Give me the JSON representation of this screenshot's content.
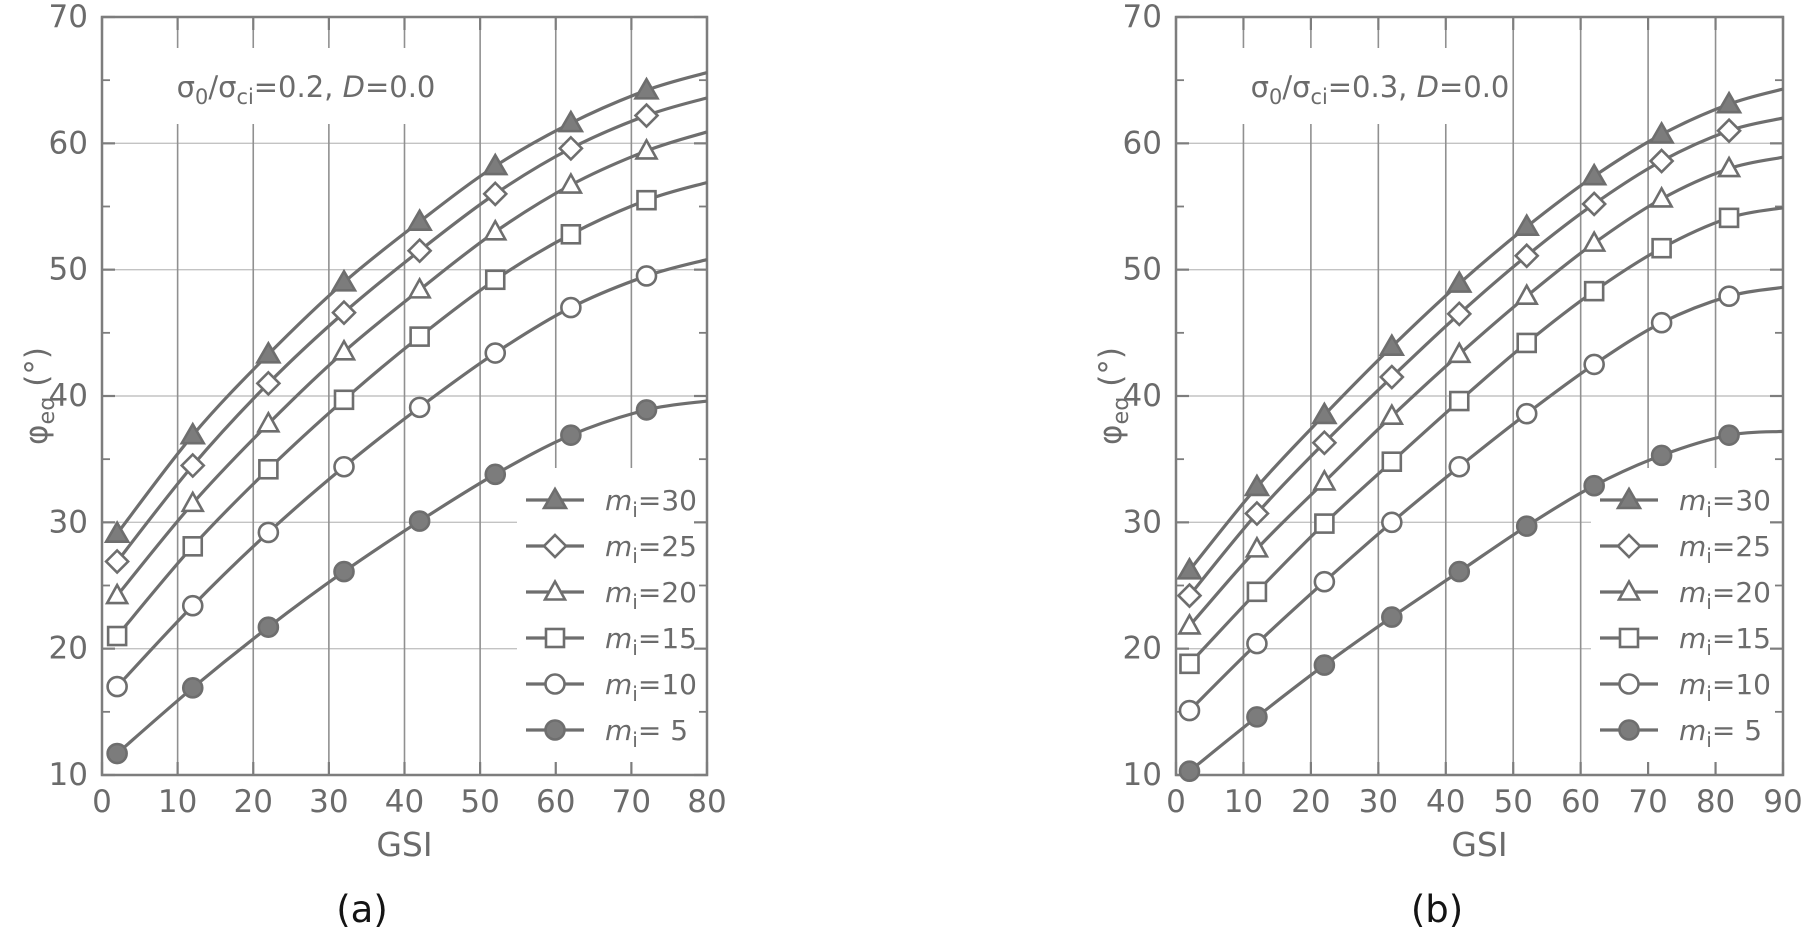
{
  "figure": {
    "captions": {
      "a": "(a)",
      "b": "(b)"
    }
  },
  "styles": {
    "background": "#ffffff",
    "curve_color": "#6e6e6e",
    "filled_marker_color": "#7c7c7c",
    "open_marker_fill": "#ffffff",
    "frame_color": "#7d7d7d",
    "v_grid_color": "#909090",
    "h_grid_color": "#c3c3c3",
    "text_gray": "#6b6b6b",
    "caption_color": "#141414"
  },
  "chart_data": [
    {
      "id": "a",
      "type": "line",
      "title": "σ0/σci=0.2, D=0.0",
      "title_segments": [
        {
          "t": "σ"
        },
        {
          "t": "0",
          "sub": true
        },
        {
          "t": "/σ"
        },
        {
          "t": "ci",
          "sub": true
        },
        {
          "t": "=0.2, "
        },
        {
          "t": "D",
          "i": true
        },
        {
          "t": "=0.0"
        }
      ],
      "xlabel": "GSI",
      "ylabel": "φeq (°)",
      "ylabel_segments": [
        {
          "t": "φ"
        },
        {
          "t": "eq",
          "sub": true
        },
        {
          "t": " (°)"
        }
      ],
      "xlim": [
        0,
        80
      ],
      "ylim": [
        10,
        70
      ],
      "xticks": [
        0,
        10,
        20,
        30,
        40,
        50,
        60,
        70,
        80
      ],
      "yticks": [
        10,
        20,
        30,
        40,
        50,
        60,
        70
      ],
      "y_minor_step": 5,
      "grid": true,
      "legend_position": "lower right",
      "x": [
        2,
        12,
        22,
        32,
        42,
        52,
        62,
        72
      ],
      "x_end": 80,
      "series": [
        {
          "name": "mi=30",
          "marker": "triangle-filled",
          "label_segments": [
            {
              "t": "m",
              "i": true
            },
            {
              "t": "i",
              "sub": true
            },
            {
              "t": "=30"
            }
          ],
          "values": [
            29.1,
            36.9,
            43.3,
            49.0,
            53.8,
            58.2,
            61.6,
            64.2
          ],
          "end_value": 65.6
        },
        {
          "name": "mi=25",
          "marker": "diamond-open",
          "label_segments": [
            {
              "t": "m",
              "i": true
            },
            {
              "t": "i",
              "sub": true
            },
            {
              "t": "=25"
            }
          ],
          "values": [
            26.9,
            34.5,
            41.0,
            46.6,
            51.5,
            56.0,
            59.6,
            62.2
          ],
          "end_value": 63.6
        },
        {
          "name": "mi=20",
          "marker": "triangle-open",
          "label_segments": [
            {
              "t": "m",
              "i": true
            },
            {
              "t": "i",
              "sub": true
            },
            {
              "t": "=20"
            }
          ],
          "values": [
            24.2,
            31.5,
            37.8,
            43.5,
            48.4,
            53.0,
            56.7,
            59.4
          ],
          "end_value": 60.9
        },
        {
          "name": "mi=15",
          "marker": "square-open",
          "label_segments": [
            {
              "t": "m",
              "i": true
            },
            {
              "t": "i",
              "sub": true
            },
            {
              "t": "=15"
            }
          ],
          "values": [
            21.0,
            28.1,
            34.2,
            39.7,
            44.7,
            49.2,
            52.8,
            55.5
          ],
          "end_value": 56.9
        },
        {
          "name": "mi=10",
          "marker": "circle-open",
          "label_segments": [
            {
              "t": "m",
              "i": true
            },
            {
              "t": "i",
              "sub": true
            },
            {
              "t": "=10"
            }
          ],
          "values": [
            17.0,
            23.4,
            29.2,
            34.4,
            39.1,
            43.4,
            47.0,
            49.5
          ],
          "end_value": 50.8
        },
        {
          "name": "mi=5",
          "marker": "circle-filled",
          "label_segments": [
            {
              "t": "m",
              "i": true
            },
            {
              "t": "i",
              "sub": true
            },
            {
              "t": "= 5"
            }
          ],
          "values": [
            11.7,
            16.9,
            21.7,
            26.1,
            30.1,
            33.8,
            36.9,
            38.9
          ],
          "end_value": 39.6
        }
      ]
    },
    {
      "id": "b",
      "type": "line",
      "title": "σ0/σci=0.3, D=0.0",
      "title_segments": [
        {
          "t": "σ"
        },
        {
          "t": "0",
          "sub": true
        },
        {
          "t": "/σ"
        },
        {
          "t": "ci",
          "sub": true
        },
        {
          "t": "=0.3, "
        },
        {
          "t": "D",
          "i": true
        },
        {
          "t": "=0.0"
        }
      ],
      "xlabel": "GSI",
      "ylabel": "φeq (°)",
      "ylabel_segments": [
        {
          "t": "φ"
        },
        {
          "t": "eq",
          "sub": true
        },
        {
          "t": " (°)"
        }
      ],
      "xlim": [
        0,
        90
      ],
      "ylim": [
        10,
        70
      ],
      "xticks": [
        0,
        10,
        20,
        30,
        40,
        50,
        60,
        70,
        80,
        90
      ],
      "yticks": [
        10,
        20,
        30,
        40,
        50,
        60,
        70
      ],
      "y_minor_step": 5,
      "grid": true,
      "legend_position": "lower right",
      "x": [
        2,
        12,
        22,
        32,
        42,
        52,
        62,
        72,
        82
      ],
      "x_end": 90,
      "series": [
        {
          "name": "mi=30",
          "marker": "triangle-filled",
          "label_segments": [
            {
              "t": "m",
              "i": true
            },
            {
              "t": "i",
              "sub": true
            },
            {
              "t": "=30"
            }
          ],
          "values": [
            26.2,
            32.8,
            38.5,
            43.9,
            48.9,
            53.4,
            57.4,
            60.7,
            63.1
          ],
          "end_value": 64.3
        },
        {
          "name": "mi=25",
          "marker": "diamond-open",
          "label_segments": [
            {
              "t": "m",
              "i": true
            },
            {
              "t": "i",
              "sub": true
            },
            {
              "t": "=25"
            }
          ],
          "values": [
            24.2,
            30.7,
            36.3,
            41.5,
            46.5,
            51.1,
            55.2,
            58.6,
            61.0
          ],
          "end_value": 62.0
        },
        {
          "name": "mi=20",
          "marker": "triangle-open",
          "label_segments": [
            {
              "t": "m",
              "i": true
            },
            {
              "t": "i",
              "sub": true
            },
            {
              "t": "=20"
            }
          ],
          "values": [
            21.8,
            27.9,
            33.2,
            38.4,
            43.3,
            47.9,
            52.1,
            55.6,
            58.0
          ],
          "end_value": 58.9
        },
        {
          "name": "mi=15",
          "marker": "square-open",
          "label_segments": [
            {
              "t": "m",
              "i": true
            },
            {
              "t": "i",
              "sub": true
            },
            {
              "t": "=15"
            }
          ],
          "values": [
            18.8,
            24.5,
            29.9,
            34.8,
            39.6,
            44.2,
            48.3,
            51.7,
            54.1
          ],
          "end_value": 54.9
        },
        {
          "name": "mi=10",
          "marker": "circle-open",
          "label_segments": [
            {
              "t": "m",
              "i": true
            },
            {
              "t": "i",
              "sub": true
            },
            {
              "t": "=10"
            }
          ],
          "values": [
            15.1,
            20.4,
            25.3,
            30.0,
            34.4,
            38.6,
            42.5,
            45.8,
            47.9
          ],
          "end_value": 48.6
        },
        {
          "name": "mi=5",
          "marker": "circle-filled",
          "label_segments": [
            {
              "t": "m",
              "i": true
            },
            {
              "t": "i",
              "sub": true
            },
            {
              "t": "= 5"
            }
          ],
          "values": [
            10.3,
            14.6,
            18.7,
            22.5,
            26.1,
            29.7,
            32.9,
            35.3,
            36.9
          ],
          "end_value": 37.2
        }
      ]
    }
  ]
}
